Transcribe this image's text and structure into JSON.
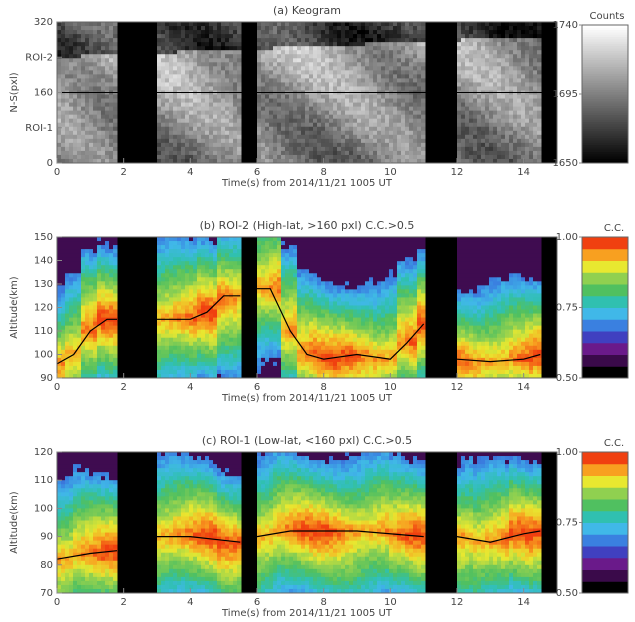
{
  "chart_data": [
    {
      "type": "keogram",
      "title": "(a) Keogram",
      "xlabel": "Time(s) from 2014/11/21 1005 UT",
      "ylabel": "N-S(pxl)",
      "xlim": [
        0,
        15
      ],
      "xticks": [
        0,
        2,
        4,
        6,
        8,
        10,
        12,
        14
      ],
      "ylim": [
        0,
        320
      ],
      "yticks": [
        0,
        {
          "value": 80,
          "label": "ROI-1"
        },
        160,
        {
          "value": 240,
          "label": "ROI-2"
        },
        320
      ],
      "hline": 160,
      "gaps": [
        [
          1.83,
          2.97
        ],
        [
          5.52,
          5.97
        ],
        [
          11.05,
          12.0
        ],
        [
          14.5,
          15
        ]
      ],
      "colorbar": {
        "label": "Counts",
        "lim": [
          1650,
          1740
        ],
        "ticks": [
          1650,
          1695,
          1740
        ],
        "colormap": [
          "#000000",
          "#ffffff"
        ]
      }
    },
    {
      "type": "heatmap",
      "title": "(b) ROI-2 (High-lat, >160 pxl) C.C.>0.5",
      "xlabel": "Time(s) from 2014/11/21 1005 UT",
      "ylabel": "Altitude(km)",
      "xlim": [
        0,
        15
      ],
      "xticks": [
        0,
        2,
        4,
        6,
        8,
        10,
        12,
        14
      ],
      "ylim": [
        90,
        150
      ],
      "yticks": [
        90,
        100,
        110,
        120,
        130,
        140,
        150
      ],
      "gaps": [
        [
          1.83,
          2.97
        ],
        [
          5.52,
          5.97
        ],
        [
          11.05,
          12.0
        ],
        [
          14.5,
          15
        ]
      ],
      "peak": {
        "color": "#000000",
        "x": [
          0,
          0.5,
          1,
          1.5,
          1.8,
          null,
          3.0,
          4,
          4.5,
          5,
          5.5,
          null,
          6.0,
          6.4,
          7,
          7.5,
          8,
          9,
          10,
          10.5,
          11,
          null,
          12.0,
          13,
          14,
          14.5
        ],
        "values": [
          96,
          100,
          110,
          115,
          115,
          null,
          115,
          115,
          118,
          125,
          125,
          null,
          128,
          128,
          110,
          100,
          98,
          100,
          98,
          105,
          113,
          null,
          98,
          97,
          98,
          100
        ]
      },
      "colorbar": {
        "label": "C.C.",
        "lim": [
          0.5,
          1
        ],
        "ticks": [
          {
            "value": 0.5,
            "label": "0.50"
          },
          {
            "value": 0.75,
            "label": "0.75"
          },
          {
            "value": 1,
            "label": "1.00"
          }
        ],
        "colormap": [
          "#000000",
          "#3a0a4a",
          "#6a1a8a",
          "#4040c0",
          "#3a80e0",
          "#40b8e8",
          "#30c0b0",
          "#50c060",
          "#90d050",
          "#e8e830",
          "#f8a020",
          "#f04010"
        ]
      }
    },
    {
      "type": "heatmap",
      "title": "(c) ROI-1 (Low-lat, <160 pxl) C.C.>0.5",
      "xlabel": "Time(s) from 2014/11/21 1005 UT",
      "ylabel": "Altitude(km)",
      "xlim": [
        0,
        15
      ],
      "xticks": [
        0,
        2,
        4,
        6,
        8,
        10,
        12,
        14
      ],
      "ylim": [
        70,
        120
      ],
      "yticks": [
        70,
        80,
        90,
        100,
        110,
        120
      ],
      "gaps": [
        [
          1.83,
          2.97
        ],
        [
          5.52,
          5.97
        ],
        [
          11.05,
          12.0
        ],
        [
          14.5,
          15
        ]
      ],
      "peak": {
        "color": "#000000",
        "x": [
          0,
          1,
          1.8,
          null,
          3.0,
          4,
          5.5,
          null,
          6.0,
          7,
          9,
          11,
          null,
          12.0,
          13,
          14,
          14.5
        ],
        "values": [
          82,
          84,
          85,
          null,
          90,
          90,
          88,
          null,
          90,
          92,
          92,
          90,
          null,
          90,
          88,
          91,
          92
        ]
      },
      "colorbar": {
        "label": "C.C.",
        "lim": [
          0.5,
          1
        ],
        "ticks": [
          {
            "value": 0.5,
            "label": "0.50"
          },
          {
            "value": 0.75,
            "label": "0.75"
          },
          {
            "value": 1,
            "label": "1.00"
          }
        ],
        "colormap": [
          "#000000",
          "#3a0a4a",
          "#6a1a8a",
          "#4040c0",
          "#3a80e0",
          "#40b8e8",
          "#30c0b0",
          "#50c060",
          "#90d050",
          "#e8e830",
          "#f8a020",
          "#f04010"
        ]
      }
    }
  ]
}
